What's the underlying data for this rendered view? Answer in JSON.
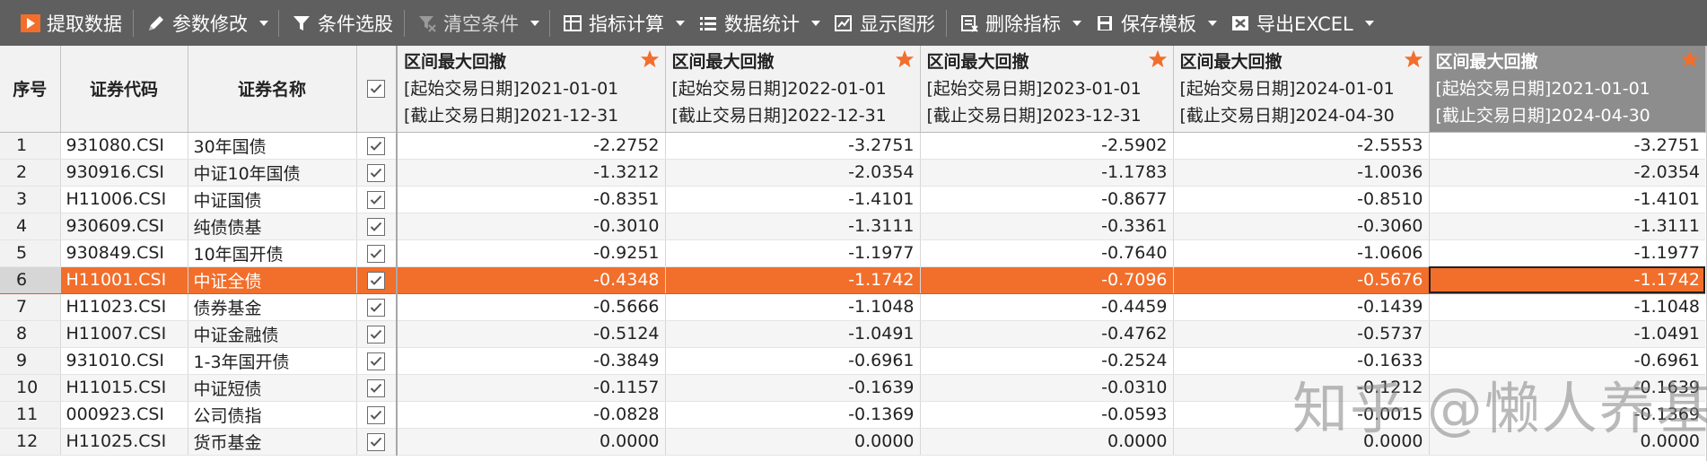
{
  "toolbar": {
    "fetch": "提取数据",
    "params": "参数修改",
    "filter": "条件选股",
    "clear": "清空条件",
    "calc": "指标计算",
    "stats": "数据统计",
    "chart": "显示图形",
    "delete": "删除指标",
    "save": "保存模板",
    "export": "导出EXCEL"
  },
  "headers": {
    "index": "序号",
    "code": "证券代码",
    "name": "证券名称"
  },
  "metrics": [
    {
      "title": "区间最大回撤",
      "start": "[起始交易日期]2021-01-01",
      "end": "[截止交易日期]2021-12-31"
    },
    {
      "title": "区间最大回撤",
      "start": "[起始交易日期]2022-01-01",
      "end": "[截止交易日期]2022-12-31"
    },
    {
      "title": "区间最大回撤",
      "start": "[起始交易日期]2023-01-01",
      "end": "[截止交易日期]2023-12-31"
    },
    {
      "title": "区间最大回撤",
      "start": "[起始交易日期]2024-01-01",
      "end": "[截止交易日期]2024-04-30"
    },
    {
      "title": "区间最大回撤",
      "start": "[起始交易日期]2021-01-01",
      "end": "[截止交易日期]2024-04-30"
    }
  ],
  "rows": [
    {
      "idx": "1",
      "code": "931080.CSI",
      "name": "30年国债",
      "v": [
        "-2.2752",
        "-3.2751",
        "-2.5902",
        "-2.5553",
        "-3.2751"
      ]
    },
    {
      "idx": "2",
      "code": "930916.CSI",
      "name": "中证10年国债",
      "v": [
        "-1.3212",
        "-2.0354",
        "-1.1783",
        "-1.0036",
        "-2.0354"
      ]
    },
    {
      "idx": "3",
      "code": "H11006.CSI",
      "name": "中证国债",
      "v": [
        "-0.8351",
        "-1.4101",
        "-0.8677",
        "-0.8510",
        "-1.4101"
      ]
    },
    {
      "idx": "4",
      "code": "930609.CSI",
      "name": "纯债债基",
      "v": [
        "-0.3010",
        "-1.3111",
        "-0.3361",
        "-0.3060",
        "-1.3111"
      ]
    },
    {
      "idx": "5",
      "code": "930849.CSI",
      "name": "10年国开债",
      "v": [
        "-0.9251",
        "-1.1977",
        "-0.7640",
        "-1.0606",
        "-1.1977"
      ]
    },
    {
      "idx": "6",
      "code": "H11001.CSI",
      "name": "中证全债",
      "v": [
        "-0.4348",
        "-1.1742",
        "-0.7096",
        "-0.5676",
        "-1.1742"
      ]
    },
    {
      "idx": "7",
      "code": "H11023.CSI",
      "name": "债券基金",
      "v": [
        "-0.5666",
        "-1.1048",
        "-0.4459",
        "-0.1439",
        "-1.1048"
      ]
    },
    {
      "idx": "8",
      "code": "H11007.CSI",
      "name": "中证金融债",
      "v": [
        "-0.5124",
        "-1.0491",
        "-0.4762",
        "-0.5737",
        "-1.0491"
      ]
    },
    {
      "idx": "9",
      "code": "931010.CSI",
      "name": "1-3年国开债",
      "v": [
        "-0.3849",
        "-0.6961",
        "-0.2524",
        "-0.1633",
        "-0.6961"
      ]
    },
    {
      "idx": "10",
      "code": "H11015.CSI",
      "name": "中证短债",
      "v": [
        "-0.1157",
        "-0.1639",
        "-0.0310",
        "-0.1212",
        "-0.1639"
      ]
    },
    {
      "idx": "11",
      "code": "000923.CSI",
      "name": "公司债指",
      "v": [
        "-0.0828",
        "-0.1369",
        "-0.0593",
        "-0.0015",
        "-0.1369"
      ]
    },
    {
      "idx": "12",
      "code": "H11025.CSI",
      "name": "货币基金",
      "v": [
        "0.0000",
        "0.0000",
        "0.0000",
        "0.0000",
        "0.0000"
      ]
    }
  ],
  "selected_row": "6",
  "watermark": "知乎 @懒人养基",
  "colors": {
    "toolbar_bg": "#5f5f5f",
    "selected_row": "#f26e2b",
    "star": "#f26e2b",
    "header_bg": "#f2f2f2",
    "active_header_bg": "#8d8d8d"
  }
}
